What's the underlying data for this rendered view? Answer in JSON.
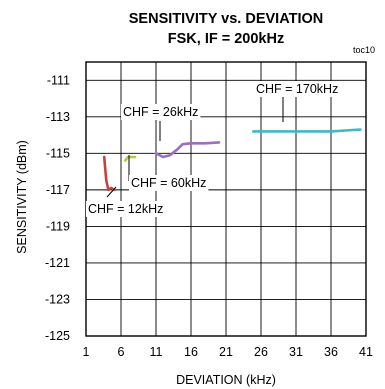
{
  "chart_data": {
    "type": "line",
    "title": "SENSITIVITY vs. DEVIATION",
    "subtitle": "FSK, IF = 200kHz",
    "tag": "toc10",
    "xlabel": "DEVIATION (kHz)",
    "ylabel": "SENSITIVITY (dBm)",
    "xlim": [
      1,
      41
    ],
    "ylim": [
      -125,
      -110
    ],
    "xticks": [
      1,
      6,
      11,
      16,
      21,
      26,
      31,
      36,
      41
    ],
    "yticks": [
      -111,
      -113,
      -115,
      -117,
      -119,
      -121,
      -123,
      -125
    ],
    "grid": true,
    "series": [
      {
        "name": "CHF = 12kHz",
        "color": "#c8403a",
        "points": [
          [
            3.6,
            -115.2
          ],
          [
            3.9,
            -116.5
          ],
          [
            4.2,
            -117.0
          ],
          [
            4.6,
            -116.9
          ],
          [
            5.1,
            -117.0
          ]
        ]
      },
      {
        "name": "CHF = 60kHz",
        "color": "#b5c84a",
        "points": [
          [
            6.6,
            -115.4
          ],
          [
            7.0,
            -115.2
          ],
          [
            7.5,
            -115.2
          ],
          [
            8.0,
            -115.2
          ]
        ]
      },
      {
        "name": "CHF = 26kHz",
        "color": "#9a6fc0",
        "points": [
          [
            11.0,
            -115.0
          ],
          [
            12.0,
            -115.2
          ],
          [
            13.0,
            -115.1
          ],
          [
            14.0,
            -114.8
          ],
          [
            14.8,
            -114.5
          ],
          [
            16.0,
            -114.45
          ],
          [
            18.0,
            -114.45
          ],
          [
            20.0,
            -114.4
          ]
        ]
      },
      {
        "name": "CHF = 170kHz",
        "color": "#3fb8c8",
        "points": [
          [
            24.9,
            -113.8
          ],
          [
            27.0,
            -113.8
          ],
          [
            30.0,
            -113.8
          ],
          [
            33.0,
            -113.8
          ],
          [
            36.0,
            -113.8
          ],
          [
            38.0,
            -113.75
          ],
          [
            40.2,
            -113.7
          ]
        ]
      }
    ],
    "annotations": [
      {
        "text": "CHF = 12kHz",
        "series": 0
      },
      {
        "text": "CHF = 60kHz",
        "series": 1
      },
      {
        "text": "CHF = 26kHz",
        "series": 2
      },
      {
        "text": "CHF = 170kHz",
        "series": 3
      }
    ]
  }
}
